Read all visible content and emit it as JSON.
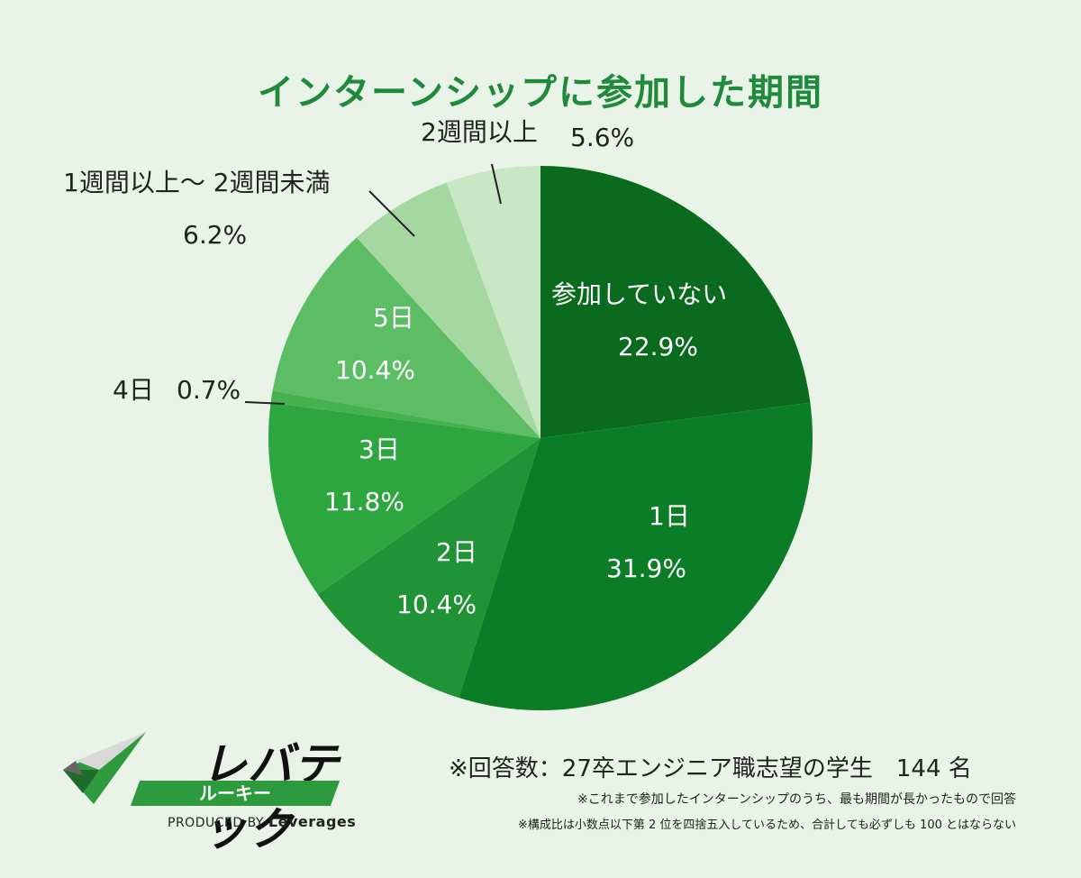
{
  "chart_data": {
    "type": "pie",
    "title": "インターンシップに参加した期間",
    "start": "top",
    "direction": "clockwise",
    "slices": [
      {
        "label": "参加していない",
        "value": "22.9%",
        "color": "#0a6b1f"
      },
      {
        "label": "1日",
        "value": "31.9%",
        "color": "#0a7d26"
      },
      {
        "label": "2日",
        "value": "10.4%",
        "color": "#1f9335"
      },
      {
        "label": "3日",
        "value": "11.8%",
        "color": "#2ea63f"
      },
      {
        "label": "4日",
        "value": "0.7%",
        "color": "#46b24f"
      },
      {
        "label": "5日",
        "value": "10.4%",
        "color": "#5cbd64"
      },
      {
        "label": "1週間以上〜 2週間未満",
        "value": "6.2%",
        "color": "#a4d8a0"
      },
      {
        "label": "2週間以上",
        "value": "5.6%",
        "color": "#c8e7c4"
      }
    ]
  },
  "logo": {
    "main": "レバテック",
    "sub": "ルーキー",
    "produced_prefix": "PRODUCED BY",
    "produced_brand": "Leverages"
  },
  "notes": {
    "main": "※回答数：27卒エンジニア職志望の学生　144 名",
    "line1": "※これまで参加したインターンシップのうち、最も期間が長かったもので回答",
    "line2": "※構成比は小数点以下第 2 位を四捨五入しているため、合計しても必ずしも 100 とはならない"
  }
}
